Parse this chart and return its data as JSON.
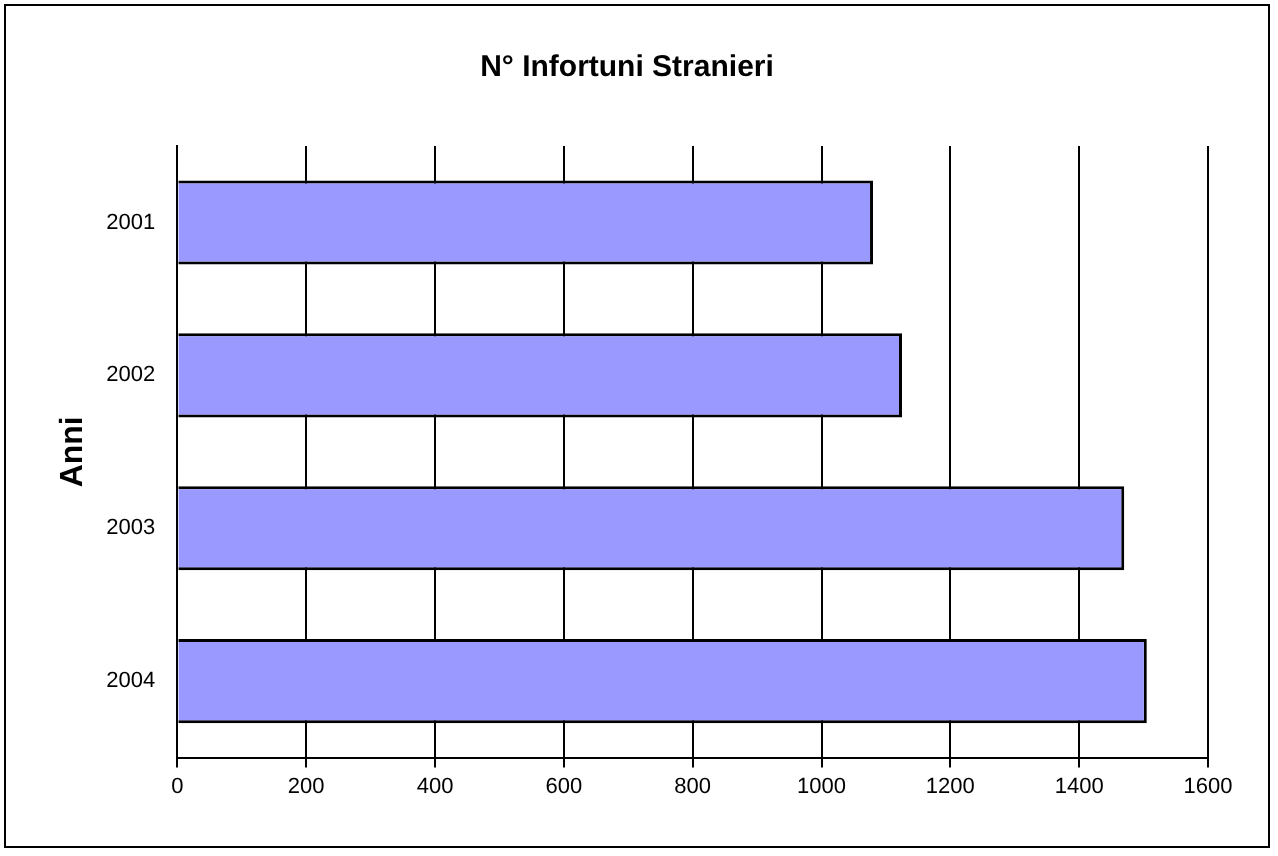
{
  "chart_data": {
    "type": "bar",
    "orientation": "horizontal",
    "title": "N° Infortuni Stranieri",
    "ylabel": "Anni",
    "categories": [
      "2001",
      "2002",
      "2003",
      "2004"
    ],
    "values": [
      1080,
      1125,
      1470,
      1505
    ],
    "color": "#9999ff",
    "xlim": [
      0,
      1600
    ],
    "xticks": [
      0,
      200,
      400,
      600,
      800,
      1000,
      1200,
      1400,
      1600
    ],
    "grid": "x",
    "legend": false
  }
}
